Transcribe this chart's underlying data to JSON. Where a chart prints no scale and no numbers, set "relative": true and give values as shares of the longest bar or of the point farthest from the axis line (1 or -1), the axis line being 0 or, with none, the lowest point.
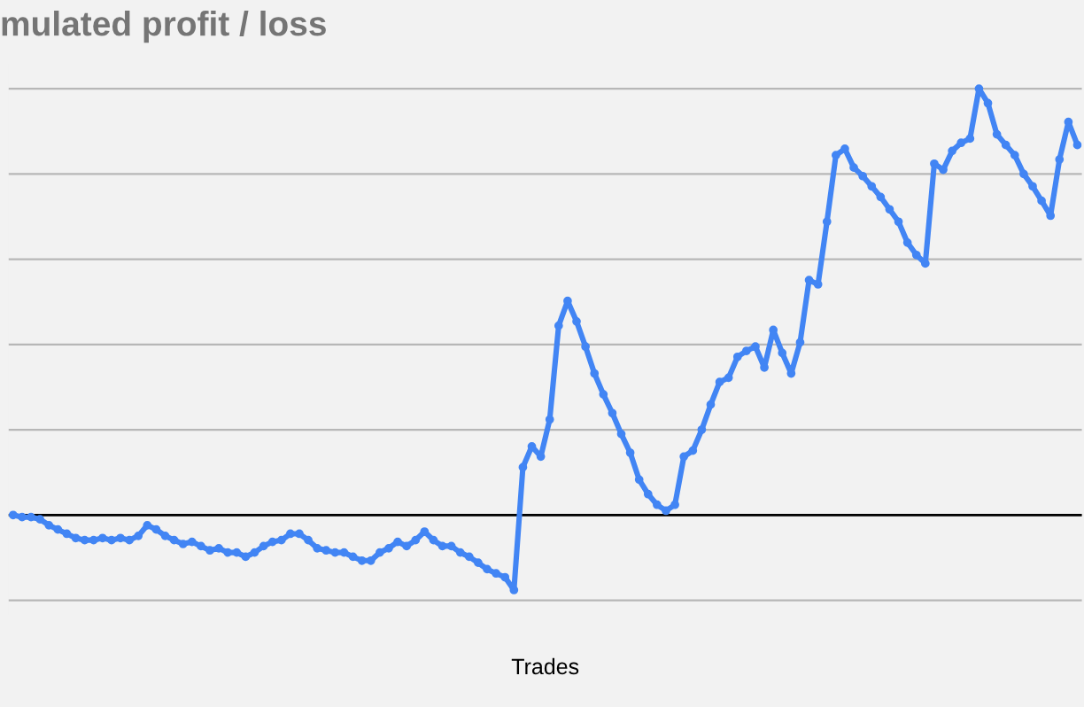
{
  "chart_data": {
    "type": "line",
    "title": "mulated profit / loss",
    "xlabel": "Trades",
    "relative": true,
    "grid": "y",
    "marker": "circle",
    "line_style": "solid",
    "categories": [
      null,
      null,
      null,
      null,
      null,
      null,
      null,
      null,
      null,
      null,
      null,
      null,
      null,
      null,
      null,
      null,
      null,
      null,
      null,
      null,
      null,
      null,
      null,
      null,
      null,
      null,
      null,
      null,
      null,
      null,
      null,
      null,
      null,
      null,
      null,
      null,
      null,
      null,
      null,
      null,
      null,
      null,
      null,
      null,
      null,
      null,
      null,
      null,
      null,
      null,
      null,
      null,
      null,
      null,
      null,
      null,
      null,
      null,
      null,
      null,
      null,
      null,
      null,
      null,
      null,
      null,
      null,
      null,
      null,
      null,
      null,
      null,
      null,
      null,
      null,
      null,
      null,
      null,
      null,
      null,
      null,
      null,
      null,
      null,
      null,
      null,
      null,
      null,
      null,
      null,
      null,
      null,
      null,
      null,
      null,
      null,
      null,
      null,
      null,
      null,
      null,
      null,
      null,
      null,
      null,
      null,
      null,
      null,
      null,
      null,
      null,
      null,
      null,
      null,
      null,
      null,
      null,
      null,
      null,
      null
    ],
    "series": [
      {
        "color": "#4285f4",
        "values": [
          0,
          -0.005,
          -0.005,
          -0.01,
          -0.024,
          -0.034,
          -0.044,
          -0.054,
          -0.059,
          -0.059,
          -0.054,
          -0.059,
          -0.054,
          -0.059,
          -0.049,
          -0.024,
          -0.034,
          -0.049,
          -0.059,
          -0.068,
          -0.063,
          -0.073,
          -0.083,
          -0.078,
          -0.088,
          -0.088,
          -0.098,
          -0.088,
          -0.073,
          -0.063,
          -0.059,
          -0.044,
          -0.044,
          -0.059,
          -0.078,
          -0.083,
          -0.088,
          -0.088,
          -0.098,
          -0.107,
          -0.107,
          -0.088,
          -0.078,
          -0.063,
          -0.073,
          -0.059,
          -0.039,
          -0.059,
          -0.073,
          -0.073,
          -0.088,
          -0.098,
          -0.112,
          -0.127,
          -0.137,
          -0.146,
          -0.176,
          0.112,
          0.161,
          0.137,
          0.224,
          0.444,
          0.502,
          0.454,
          0.395,
          0.332,
          0.283,
          0.239,
          0.19,
          0.146,
          0.083,
          0.049,
          0.024,
          0.01,
          0.024,
          0.137,
          0.151,
          0.2,
          0.259,
          0.312,
          0.322,
          0.371,
          0.385,
          0.395,
          0.346,
          0.434,
          0.38,
          0.332,
          0.405,
          0.551,
          0.541,
          0.688,
          0.844,
          0.859,
          0.815,
          0.795,
          0.771,
          0.746,
          0.717,
          0.688,
          0.639,
          0.61,
          0.59,
          0.824,
          0.81,
          0.854,
          0.873,
          0.883,
          1,
          0.966,
          0.893,
          0.868,
          0.844,
          0.8,
          0.771,
          0.737,
          0.702,
          0.834,
          0.922,
          0.868
        ]
      }
    ]
  }
}
